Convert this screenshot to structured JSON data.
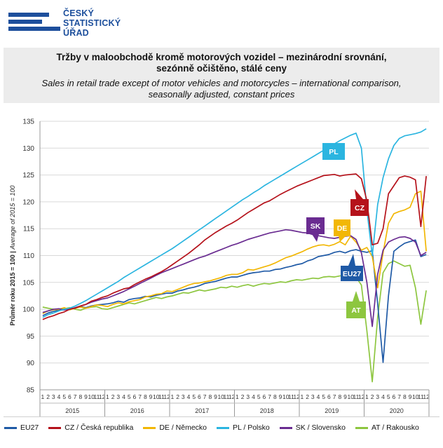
{
  "logo": {
    "line1": "ČESKÝ",
    "line2": "STATISTICKÝ",
    "line3": "ÚŘAD",
    "color": "#1d4f9c"
  },
  "title": {
    "cz_line1": "Tržby v maloobchodě  kromě motorových vozidel – mezinárodní srovnání,",
    "cz_line2": "sezónně očištěno, stálé ceny",
    "en_line1": "Sales in retail trade except of motor vehicles and motorcycles  – international comparison,",
    "en_line2": "seasonally adjusted, constant prices"
  },
  "chart_data": {
    "type": "line",
    "ylabel_cz": "Průměr roku 2015 = 100",
    "ylabel_sep": " | ",
    "ylabel_en": "Average of 2015 = 100",
    "ylim": [
      85,
      135
    ],
    "yticks": [
      85,
      90,
      95,
      100,
      105,
      110,
      115,
      120,
      125,
      130,
      135
    ],
    "years": [
      "2015",
      "2016",
      "2017",
      "2018",
      "2019",
      "2020"
    ],
    "month_labels": [
      "1",
      "2",
      "3",
      "4",
      "5",
      "6",
      "7",
      "8",
      "9",
      "10",
      "11",
      "12"
    ],
    "grid": true,
    "legend_position": "bottom",
    "series": [
      {
        "key": "EU27",
        "name": "EU27",
        "color": "#1f5aa6",
        "tag": "EU27",
        "values": [
          98.8,
          99.3,
          99.6,
          99.8,
          99.9,
          100.0,
          100.2,
          100.5,
          100.3,
          100.6,
          100.8,
          100.9,
          101.0,
          101.2,
          101.5,
          101.3,
          101.8,
          102.0,
          102.1,
          102.4,
          102.3,
          102.6,
          102.8,
          103.0,
          103.0,
          103.4,
          103.6,
          103.9,
          104.1,
          104.4,
          104.8,
          105.0,
          105.2,
          105.5,
          105.8,
          106.0,
          106.0,
          106.3,
          106.6,
          106.8,
          106.9,
          107.1,
          107.1,
          107.4,
          107.5,
          107.8,
          108.0,
          108.3,
          108.5,
          109.0,
          109.3,
          109.8,
          110.0,
          110.2,
          110.6,
          110.8,
          110.5,
          110.9,
          111.1,
          110.8,
          110.6,
          110.9,
          101.0,
          90.1,
          102.5,
          110.8,
          111.6,
          112.3,
          112.6,
          112.9,
          109.8,
          110.2
        ]
      },
      {
        "key": "CZ",
        "name": "CZ / Česká republika",
        "color": "#b5121b",
        "tag": "CZ",
        "values": [
          98.1,
          98.5,
          98.8,
          99.2,
          99.5,
          100.0,
          100.2,
          100.6,
          100.9,
          101.5,
          101.8,
          102.2,
          102.5,
          103.0,
          103.4,
          103.8,
          104.0,
          104.6,
          105.1,
          105.6,
          106.0,
          106.5,
          107.0,
          107.6,
          108.3,
          109.0,
          109.7,
          110.4,
          111.2,
          112.0,
          112.9,
          113.6,
          114.3,
          114.9,
          115.5,
          116.0,
          116.6,
          117.3,
          118.0,
          118.6,
          119.2,
          119.8,
          120.2,
          120.8,
          121.4,
          121.9,
          122.4,
          122.9,
          123.3,
          123.7,
          124.1,
          124.5,
          124.9,
          125.0,
          125.1,
          124.8,
          125.0,
          125.1,
          125.2,
          124.3,
          120.2,
          112.0,
          112.3,
          115.0,
          121.5,
          123.0,
          124.5,
          124.8,
          124.6,
          124.1,
          115.4,
          124.8
        ]
      },
      {
        "key": "DE",
        "name": "DE / Německo",
        "color": "#f2b705",
        "tag": "DE",
        "values": [
          99.2,
          99.7,
          99.9,
          100.0,
          100.3,
          99.9,
          100.2,
          100.4,
          100.2,
          100.5,
          100.8,
          100.7,
          100.5,
          100.9,
          101.2,
          101.0,
          101.4,
          101.6,
          101.8,
          102.3,
          102.5,
          102.8,
          102.9,
          103.4,
          103.3,
          103.7,
          104.1,
          104.5,
          104.8,
          104.9,
          105.1,
          105.3,
          105.6,
          105.9,
          106.3,
          106.5,
          106.5,
          106.8,
          107.4,
          107.3,
          107.6,
          107.9,
          108.2,
          108.6,
          109.1,
          109.6,
          109.9,
          110.3,
          110.7,
          111.2,
          111.6,
          111.9,
          112.0,
          111.8,
          112.1,
          112.6,
          112.0,
          113.6,
          112.5,
          111.0,
          111.5,
          109.8,
          104.0,
          110.5,
          116.0,
          117.8,
          118.2,
          118.5,
          119.0,
          121.5,
          122.0,
          110.8
        ]
      },
      {
        "key": "PL",
        "name": "PL / Polsko",
        "color": "#2bb5e0",
        "tag": "PL",
        "values": [
          98.5,
          99.0,
          99.3,
          99.7,
          100.0,
          100.2,
          100.6,
          101.1,
          101.6,
          102.2,
          102.8,
          103.4,
          104.0,
          104.6,
          105.2,
          105.9,
          106.5,
          107.1,
          107.7,
          108.3,
          108.9,
          109.5,
          110.1,
          110.7,
          111.3,
          112.0,
          112.7,
          113.4,
          114.1,
          114.8,
          115.5,
          116.2,
          116.9,
          117.6,
          118.3,
          119.0,
          119.7,
          120.4,
          121.0,
          121.7,
          122.3,
          123.0,
          123.6,
          124.2,
          124.8,
          125.4,
          126.0,
          126.6,
          127.2,
          127.8,
          128.4,
          129.0,
          129.6,
          130.2,
          130.8,
          131.4,
          131.9,
          132.4,
          132.8,
          130.0,
          118.5,
          110.0,
          119.5,
          124.5,
          128.0,
          130.5,
          131.8,
          132.3,
          132.5,
          132.7,
          133.0,
          133.6
        ]
      },
      {
        "key": "SK",
        "name": "SK / Slovensko",
        "color": "#6a2c91",
        "tag": "SK",
        "values": [
          99.4,
          99.7,
          100.0,
          100.1,
          99.9,
          100.0,
          100.3,
          100.6,
          100.9,
          101.3,
          101.6,
          101.9,
          102.1,
          102.5,
          102.9,
          103.3,
          103.8,
          104.3,
          104.8,
          105.3,
          105.8,
          106.3,
          106.8,
          107.2,
          107.6,
          108.0,
          108.4,
          108.8,
          109.2,
          109.6,
          109.9,
          110.3,
          110.7,
          111.1,
          111.5,
          111.9,
          112.2,
          112.6,
          113.0,
          113.3,
          113.6,
          113.9,
          114.2,
          114.4,
          114.6,
          114.8,
          114.7,
          114.5,
          114.3,
          114.2,
          113.9,
          113.7,
          113.5,
          113.3,
          113.2,
          113.4,
          113.6,
          113.7,
          113.0,
          110.5,
          105.0,
          96.8,
          106.5,
          111.0,
          112.5,
          113.0,
          113.4,
          113.5,
          113.2,
          112.5,
          110.0,
          110.6
        ]
      },
      {
        "key": "AT",
        "name": "AT / Rakousko",
        "color": "#8dc63f",
        "tag": "AT",
        "values": [
          100.4,
          100.2,
          100.0,
          99.8,
          100.1,
          100.3,
          100.0,
          99.8,
          100.2,
          100.4,
          100.5,
          100.1,
          100.0,
          100.3,
          100.6,
          100.9,
          101.2,
          101.0,
          101.3,
          101.6,
          101.9,
          102.2,
          102.0,
          102.3,
          102.5,
          102.8,
          103.1,
          103.0,
          103.3,
          103.6,
          103.4,
          103.6,
          103.8,
          104.1,
          104.0,
          104.3,
          104.1,
          104.4,
          104.6,
          104.3,
          104.6,
          104.8,
          104.7,
          104.9,
          105.1,
          105.0,
          105.3,
          105.5,
          105.4,
          105.6,
          105.8,
          105.7,
          106.0,
          106.1,
          106.0,
          106.2,
          106.4,
          106.3,
          106.0,
          104.5,
          96.0,
          86.5,
          98.5,
          106.8,
          108.5,
          109.0,
          108.5,
          108.0,
          108.2,
          104.0,
          97.2,
          103.5
        ]
      }
    ]
  }
}
